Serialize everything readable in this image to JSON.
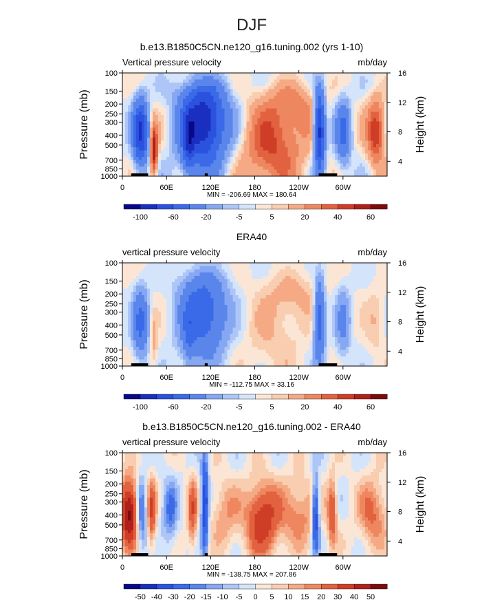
{
  "title": "DJF",
  "chart_data": [
    {
      "type": "heatmap",
      "title": "b.e13.B1850C5CN.ne120_g16.tuning.002 (yrs 1-10)",
      "left_label": "Vertical pressure velocity",
      "right_label": "mb/day",
      "ylabel": "Pressure (mb)",
      "y2label": "Height (km)",
      "x_ticks": [
        "0",
        "60E",
        "120E",
        "180",
        "120W",
        "60W"
      ],
      "y_ticks": [
        "100",
        "150",
        "200",
        "250",
        "300",
        "400",
        "500",
        "700",
        "850",
        "1000"
      ],
      "height_ticks": [
        "16",
        "12",
        "8",
        "4"
      ],
      "stats": "MIN = -206.69   MAX = 180.64",
      "colorbar_labels": [
        "-100",
        "-60",
        "-20",
        "-5",
        "5",
        "20",
        "40",
        "60"
      ],
      "levels": [
        -120,
        -100,
        -80,
        -60,
        -40,
        -20,
        -10,
        -5,
        0,
        5,
        10,
        20,
        30,
        40,
        50,
        60
      ],
      "colors": [
        "#08088a",
        "#1a2fbf",
        "#2a52de",
        "#3a6ae8",
        "#5a86ec",
        "#86a8f2",
        "#aec6f7",
        "#d4e4fb",
        "#fbe6d6",
        "#f9cdb0",
        "#f5aa85",
        "#ee8760",
        "#e2623f",
        "#cf3d26",
        "#b0201a",
        "#7c0b0b"
      ]
    },
    {
      "type": "heatmap",
      "title": "ERA40",
      "left_label": "vertical pressure velocity",
      "right_label": "mb/day",
      "ylabel": "Pressure (mb)",
      "y2label": "Height (km)",
      "x_ticks": [
        "0",
        "60E",
        "120E",
        "180",
        "120W",
        "60W"
      ],
      "y_ticks": [
        "100",
        "150",
        "200",
        "250",
        "300",
        "400",
        "500",
        "700",
        "850",
        "1000"
      ],
      "height_ticks": [
        "16",
        "12",
        "8",
        "4"
      ],
      "stats": "MIN = -112.75   MAX =  33.16",
      "colorbar_labels": [
        "-100",
        "-60",
        "-20",
        "-5",
        "5",
        "20",
        "40",
        "60"
      ],
      "levels": [
        -120,
        -100,
        -80,
        -60,
        -40,
        -20,
        -10,
        -5,
        0,
        5,
        10,
        20,
        30,
        40,
        50,
        60
      ],
      "colors": [
        "#08088a",
        "#1a2fbf",
        "#2a52de",
        "#3a6ae8",
        "#5a86ec",
        "#86a8f2",
        "#aec6f7",
        "#d4e4fb",
        "#fbe6d6",
        "#f9cdb0",
        "#f5aa85",
        "#ee8760",
        "#e2623f",
        "#cf3d26",
        "#b0201a",
        "#7c0b0b"
      ]
    },
    {
      "type": "heatmap",
      "title": "b.e13.B1850C5CN.ne120_g16.tuning.002 - ERA40",
      "left_label": "vertical pressure velocity",
      "right_label": "mb/day",
      "ylabel": "Pressure (mb)",
      "y2label": "Height (km)",
      "x_ticks": [
        "0",
        "60E",
        "120E",
        "180",
        "120W",
        "60W"
      ],
      "y_ticks": [
        "100",
        "150",
        "200",
        "250",
        "300",
        "400",
        "500",
        "700",
        "850",
        "1000"
      ],
      "height_ticks": [
        "16",
        "12",
        "8",
        "4"
      ],
      "stats": "MIN = -138.75   MAX = 207.86",
      "colorbar_labels": [
        "-50",
        "-40",
        "-30",
        "-20",
        "-15",
        "-10",
        "-5",
        "0",
        "5",
        "10",
        "15",
        "20",
        "30",
        "40",
        "50"
      ],
      "levels": [
        -60,
        -50,
        -40,
        -30,
        -20,
        -15,
        -10,
        -5,
        0,
        5,
        10,
        15,
        20,
        30,
        40,
        50
      ],
      "colors": [
        "#08088a",
        "#1a2fbf",
        "#2a52de",
        "#3a6ae8",
        "#5a86ec",
        "#86a8f2",
        "#aec6f7",
        "#d4e4fb",
        "#fbe6d6",
        "#f9cdb0",
        "#f5aa85",
        "#ee8760",
        "#e2623f",
        "#cf3d26",
        "#b0201a",
        "#7c0b0b"
      ]
    }
  ]
}
